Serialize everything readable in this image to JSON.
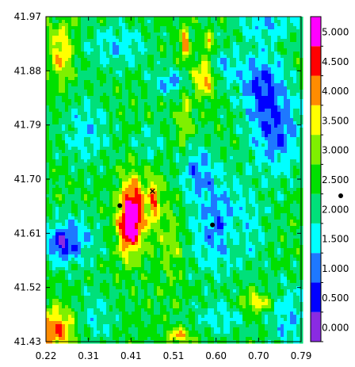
{
  "chart_data": {
    "type": "heatmap",
    "title": "",
    "xlabel": "",
    "ylabel": "",
    "xlim": [
      0.22,
      0.79
    ],
    "ylim": [
      41.43,
      41.97
    ],
    "x_ticks": [
      "0.22",
      "0.31",
      "0.41",
      "0.51",
      "0.60",
      "0.70",
      "0.79"
    ],
    "y_ticks": [
      "41.97",
      "41.88",
      "41.79",
      "41.70",
      "41.61",
      "41.52",
      "41.43"
    ],
    "colorbar": {
      "range": [
        0.0,
        5.5
      ],
      "labels": [
        "5.000",
        "4.500",
        "4.000",
        "3.500",
        "3.000",
        "2.500",
        "2.000",
        "1.500",
        "1.000",
        "0.500",
        "0.000"
      ],
      "levels": [
        {
          "min": 0.0,
          "max": 0.5,
          "color": "#8a2be2"
        },
        {
          "min": 0.5,
          "max": 1.0,
          "color": "#0000ff"
        },
        {
          "min": 1.0,
          "max": 1.5,
          "color": "#1e78ff"
        },
        {
          "min": 1.5,
          "max": 2.0,
          "color": "#00ffff"
        },
        {
          "min": 2.0,
          "max": 2.5,
          "color": "#00e07a"
        },
        {
          "min": 2.5,
          "max": 3.0,
          "color": "#00e000"
        },
        {
          "min": 3.0,
          "max": 3.5,
          "color": "#7ff000"
        },
        {
          "min": 3.5,
          "max": 4.0,
          "color": "#ffff00"
        },
        {
          "min": 4.0,
          "max": 4.5,
          "color": "#ff8c00"
        },
        {
          "min": 4.5,
          "max": 5.0,
          "color": "#ff0000"
        },
        {
          "min": 5.0,
          "max": 5.5,
          "color": "#ff00ff"
        }
      ]
    },
    "background_value": 2.6,
    "blobs": [
      {
        "x": 0.415,
        "y": 41.645,
        "sx": 0.02,
        "sy": 0.04,
        "a": 2.8
      },
      {
        "x": 0.4,
        "y": 41.61,
        "sx": 0.015,
        "sy": 0.03,
        "a": 1.2
      },
      {
        "x": 0.462,
        "y": 41.665,
        "sx": 0.009,
        "sy": 0.03,
        "a": 1.6
      },
      {
        "x": 0.575,
        "y": 41.87,
        "sx": 0.018,
        "sy": 0.02,
        "a": 2.0
      },
      {
        "x": 0.53,
        "y": 41.8,
        "sx": 0.01,
        "sy": 0.04,
        "a": 0.9
      },
      {
        "x": 0.53,
        "y": 41.925,
        "sx": 0.006,
        "sy": 0.018,
        "a": 2.0
      },
      {
        "x": 0.583,
        "y": 41.925,
        "sx": 0.006,
        "sy": 0.012,
        "a": 1.8
      },
      {
        "x": 0.255,
        "y": 41.91,
        "sx": 0.018,
        "sy": 0.035,
        "a": 1.4
      },
      {
        "x": 0.24,
        "y": 41.45,
        "sx": 0.03,
        "sy": 0.025,
        "a": 1.9
      },
      {
        "x": 0.64,
        "y": 41.61,
        "sx": 0.018,
        "sy": 0.03,
        "a": 1.0
      },
      {
        "x": 0.69,
        "y": 41.495,
        "sx": 0.025,
        "sy": 0.012,
        "a": 1.3
      },
      {
        "x": 0.52,
        "y": 41.44,
        "sx": 0.02,
        "sy": 0.008,
        "a": 1.5
      },
      {
        "x": 0.62,
        "y": 41.62,
        "sx": 0.05,
        "sy": 0.05,
        "a": -1.6
      },
      {
        "x": 0.56,
        "y": 41.715,
        "sx": 0.03,
        "sy": 0.03,
        "a": -1.2
      },
      {
        "x": 0.735,
        "y": 41.78,
        "sx": 0.04,
        "sy": 0.05,
        "a": -1.5
      },
      {
        "x": 0.7,
        "y": 41.86,
        "sx": 0.035,
        "sy": 0.04,
        "a": -1.4
      },
      {
        "x": 0.61,
        "y": 41.885,
        "sx": 0.03,
        "sy": 0.022,
        "a": -1.0
      },
      {
        "x": 0.5,
        "y": 41.86,
        "sx": 0.03,
        "sy": 0.015,
        "a": -1.2
      },
      {
        "x": 0.38,
        "y": 41.92,
        "sx": 0.05,
        "sy": 0.025,
        "a": -0.9
      },
      {
        "x": 0.31,
        "y": 41.78,
        "sx": 0.035,
        "sy": 0.04,
        "a": -0.9
      },
      {
        "x": 0.28,
        "y": 41.6,
        "sx": 0.035,
        "sy": 0.03,
        "a": -1.2
      },
      {
        "x": 0.25,
        "y": 41.59,
        "sx": 0.02,
        "sy": 0.02,
        "a": -1.2
      },
      {
        "x": 0.76,
        "y": 41.47,
        "sx": 0.03,
        "sy": 0.04,
        "a": -1.0
      },
      {
        "x": 0.61,
        "y": 41.47,
        "sx": 0.04,
        "sy": 0.02,
        "a": -0.8
      },
      {
        "x": 0.33,
        "y": 41.47,
        "sx": 0.03,
        "sy": 0.03,
        "a": -0.7
      },
      {
        "x": 0.72,
        "y": 41.96,
        "sx": 0.05,
        "sy": 0.02,
        "a": -1.0
      },
      {
        "x": 0.45,
        "y": 41.76,
        "sx": 0.025,
        "sy": 0.025,
        "a": -0.6
      },
      {
        "x": 0.5,
        "y": 41.6,
        "sx": 0.02,
        "sy": 0.05,
        "a": 0.7
      }
    ],
    "markers": [
      {
        "x": 0.385,
        "y": 41.656,
        "symbol": "dot"
      },
      {
        "x": 0.592,
        "y": 41.624,
        "symbol": "dot"
      },
      {
        "x": 0.458,
        "y": 41.68,
        "symbol": "x"
      }
    ],
    "side_marker": {
      "symbol": "dot"
    }
  }
}
